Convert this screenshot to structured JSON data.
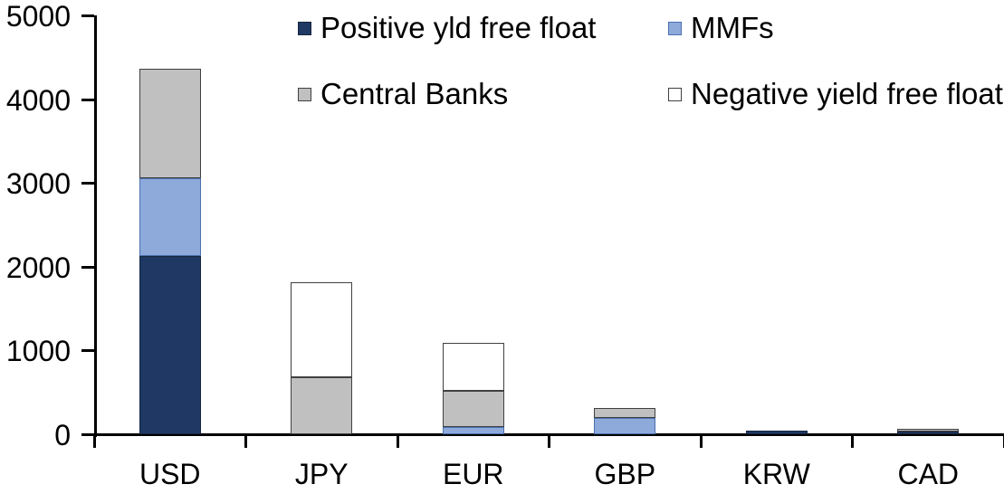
{
  "chart_data": {
    "type": "bar",
    "stacked": true,
    "title": "",
    "xlabel": "",
    "ylabel": "",
    "categories": [
      "USD",
      "JPY",
      "EUR",
      "GBP",
      "KRW",
      "CAD"
    ],
    "series": [
      {
        "name": "Positive yld free float",
        "color": "#1F3864",
        "border_color": "#17263E",
        "values": [
          2130,
          0,
          0,
          0,
          40,
          35
        ]
      },
      {
        "name": "MMFs",
        "color": "#8EAADB",
        "border_color": "#4A70B0",
        "values": [
          930,
          0,
          90,
          195,
          0,
          0
        ]
      },
      {
        "name": "Central Banks",
        "color": "#C0C0C0",
        "border_color": "#404040",
        "values": [
          1300,
          680,
          430,
          120,
          0,
          25
        ]
      },
      {
        "name": "Negative yield free float",
        "color": "#FFFFFF",
        "border_color": "#404040",
        "values": [
          0,
          1130,
          570,
          0,
          0,
          0
        ]
      }
    ],
    "totals": [
      4360,
      1810,
      1090,
      315,
      40,
      60
    ],
    "ylim": [
      0,
      5000
    ],
    "yticks": [
      0,
      1000,
      2000,
      3000,
      4000,
      5000
    ],
    "grid": false,
    "legend_position": "top",
    "legend_layout": "two-columns-two-rows",
    "axis_color": "#000000",
    "text_color": "#000000"
  }
}
